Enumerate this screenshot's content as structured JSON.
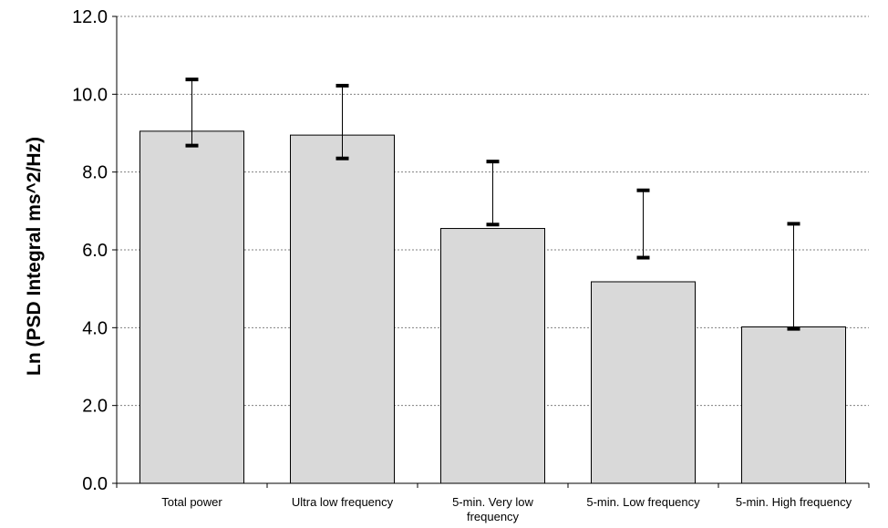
{
  "chart_data": {
    "type": "bar",
    "title": "",
    "xlabel": "",
    "ylabel": "Ln (PSD Integral ms^2/Hz)",
    "ylim": [
      0,
      12
    ],
    "yticks": [
      "0.0",
      "2.0",
      "4.0",
      "6.0",
      "8.0",
      "10.0",
      "12.0"
    ],
    "grid": "horizontal dotted",
    "legend": "none",
    "bar_color": "#d9d9d9",
    "categories": [
      [
        "Total power"
      ],
      [
        "Ultra low frequency"
      ],
      [
        "5-min. Very low",
        "frequency"
      ],
      [
        "5-min. Low frequency"
      ],
      [
        "5-min. High frequency"
      ]
    ],
    "values": [
      9.05,
      8.95,
      6.55,
      5.18,
      4.02
    ],
    "error_low": [
      8.68,
      8.35,
      6.65,
      5.8,
      3.97
    ],
    "error_high": [
      10.38,
      10.22,
      8.27,
      7.53,
      6.67
    ]
  }
}
